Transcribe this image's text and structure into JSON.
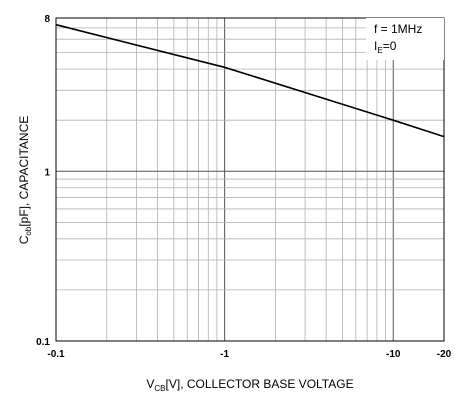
{
  "chart_data": {
    "type": "line",
    "x_scale": "log",
    "y_scale": "log",
    "xlim": [
      -0.1,
      -20
    ],
    "ylim": [
      0.1,
      8
    ],
    "x_ticks": [
      "-0.1",
      "-1",
      "-10",
      "-20"
    ],
    "y_ticks": [
      "8",
      "1",
      "0.1"
    ],
    "xlabel": {
      "main": "V",
      "sub": "CB",
      "rest": "[V], COLLECTOR BASE VOLTAGE"
    },
    "ylabel": {
      "main": "C",
      "sub": "ob",
      "rest": "[pF], CAPACITANCE"
    },
    "annotations": {
      "freq": "f = 1MHz",
      "ie_main": "I",
      "ie_sub": "E",
      "ie_rest": "=0"
    },
    "grid": true,
    "series": [
      {
        "x": [
          -0.1,
          -1,
          -10,
          -20
        ],
        "y": [
          7.3,
          4.1,
          2.0,
          1.6
        ]
      }
    ],
    "colors": {
      "line": "#000000",
      "grid": "#b0b0b0",
      "frame": "#000000"
    }
  }
}
